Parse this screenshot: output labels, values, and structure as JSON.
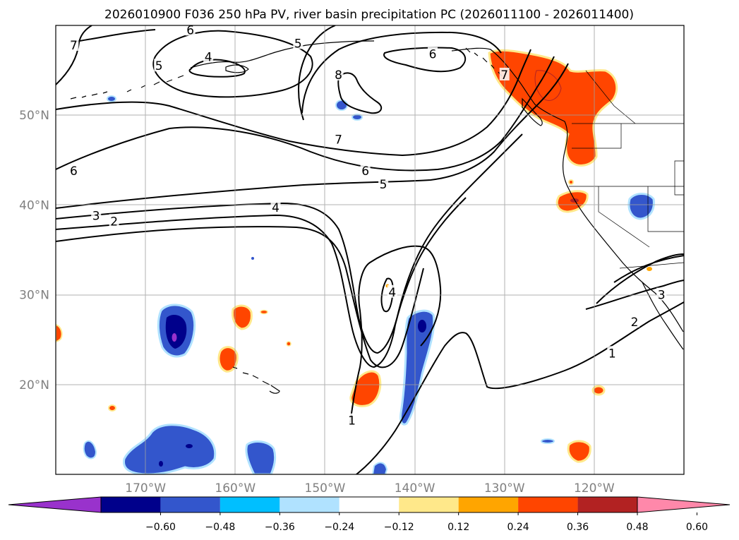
{
  "title": "2026010900 F036 250 hPa PV, river basin precipitation PC (2026011100 - 2026011400)",
  "map": {
    "lon_range": [
      -180,
      -110
    ],
    "lat_range": [
      10,
      60
    ],
    "x_ticks": [
      {
        "lon": -170,
        "label": "170°W"
      },
      {
        "lon": -160,
        "label": "160°W"
      },
      {
        "lon": -150,
        "label": "150°W"
      },
      {
        "lon": -140,
        "label": "140°W"
      },
      {
        "lon": -130,
        "label": "130°W"
      },
      {
        "lon": -120,
        "label": "120°W"
      }
    ],
    "y_ticks": [
      {
        "lat": 50,
        "label": "50°N"
      },
      {
        "lat": 40,
        "label": "40°N"
      },
      {
        "lat": 30,
        "label": "30°N"
      },
      {
        "lat": 20,
        "label": "20°N"
      }
    ],
    "tick_color": "#808080",
    "contour_labels": [
      {
        "text": "6",
        "lon": -165,
        "lat": 59.5
      },
      {
        "text": "7",
        "lon": -178,
        "lat": 57.8
      },
      {
        "text": "4",
        "lon": -163,
        "lat": 56.5
      },
      {
        "text": "5",
        "lon": -168.5,
        "lat": 55.5
      },
      {
        "text": "5",
        "lon": -153,
        "lat": 58.0
      },
      {
        "text": "8",
        "lon": -148.5,
        "lat": 54.5
      },
      {
        "text": "6",
        "lon": -138,
        "lat": 56.8
      },
      {
        "text": "7",
        "lon": -130,
        "lat": 54.5
      },
      {
        "text": "6",
        "lon": -178,
        "lat": 43.8
      },
      {
        "text": "7",
        "lon": -148.5,
        "lat": 47.3
      },
      {
        "text": "6",
        "lon": -145.5,
        "lat": 43.8
      },
      {
        "text": "5",
        "lon": -143.5,
        "lat": 42.3
      },
      {
        "text": "4",
        "lon": -155.5,
        "lat": 39.7
      },
      {
        "text": "3",
        "lon": -175.5,
        "lat": 38.8
      },
      {
        "text": "2",
        "lon": -173.5,
        "lat": 38.2
      },
      {
        "text": "4",
        "lon": -142.5,
        "lat": 30.3
      },
      {
        "text": "1",
        "lon": -147,
        "lat": 16.0
      },
      {
        "text": "1",
        "lon": -118,
        "lat": 23.5
      },
      {
        "text": "2",
        "lon": -115.5,
        "lat": 27.0
      },
      {
        "text": "3",
        "lon": -112.5,
        "lat": 30.0
      }
    ]
  },
  "colorbar": {
    "tick_labels": [
      "−0.60",
      "−0.48",
      "−0.36",
      "−0.24",
      "−0.12",
      "0.12",
      "0.24",
      "0.36",
      "0.48",
      "0.60"
    ],
    "colors": [
      "#9932cc",
      "#00008b",
      "#3356cc",
      "#00bfff",
      "#b0e2ff",
      "#ffffff",
      "#ffe88a",
      "#ffa500",
      "#ff4500",
      "#b22222",
      "#ff88aa"
    ]
  },
  "shading_colors": {
    "blue_light": "#b0e2ff",
    "blue_mid": "#00bfff",
    "blue": "#3356cc",
    "blue_dark": "#00008b",
    "purple": "#9932cc",
    "yellow": "#ffe88a",
    "orange": "#ffa500",
    "red_orange": "#ff4500",
    "red": "#b22222"
  }
}
